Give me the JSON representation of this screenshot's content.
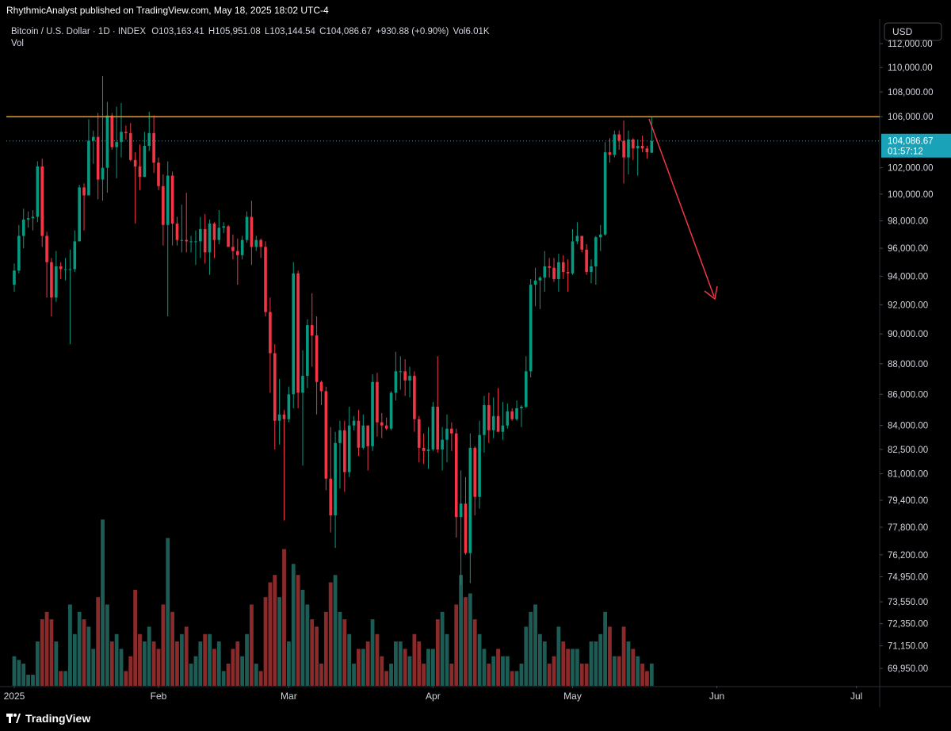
{
  "header": {
    "publisher": "RhythmicAnalyst published on TradingView.com, May 18, 2025 18:02 UTC-4"
  },
  "footer": {
    "brand": "TradingView"
  },
  "chart_data": {
    "type": "candlestick",
    "symbol": "Bitcoin / U.S. Dollar · 1D · INDEX",
    "legend": {
      "open": "O103,163.41",
      "high": "H105,951.08",
      "low": "L103,144.54",
      "close": "C104,086.67",
      "change": "+930.88 (+0.90%)",
      "volume_title": "Vol",
      "volume_value": "6.01K"
    },
    "currency": "USD",
    "log_scale": true,
    "up_color": "#089981",
    "down_color": "#f23645",
    "volume_up_color": "#1d5c55",
    "volume_down_color": "#8a2a2a",
    "ylim": [
      69040,
      114030
    ],
    "yticks": [
      {
        "value": 112000,
        "label": "112,000.00"
      },
      {
        "value": 110000,
        "label": "110,000.00"
      },
      {
        "value": 108000,
        "label": "108,000.00"
      },
      {
        "value": 106000,
        "label": "106,000.00"
      },
      {
        "value": 102000,
        "label": "102,000.00"
      },
      {
        "value": 100000,
        "label": "100,000.00"
      },
      {
        "value": 98000,
        "label": "98,000.00"
      },
      {
        "value": 96000,
        "label": "96,000.00"
      },
      {
        "value": 94000,
        "label": "94,000.00"
      },
      {
        "value": 92000,
        "label": "92,000.00"
      },
      {
        "value": 90000,
        "label": "90,000.00"
      },
      {
        "value": 88000,
        "label": "88,000.00"
      },
      {
        "value": 86000,
        "label": "86,000.00"
      },
      {
        "value": 84000,
        "label": "84,000.00"
      },
      {
        "value": 82500,
        "label": "82,500.00"
      },
      {
        "value": 81000,
        "label": "81,000.00"
      },
      {
        "value": 79400,
        "label": "79,400.00"
      },
      {
        "value": 77800,
        "label": "77,800.00"
      },
      {
        "value": 76200,
        "label": "76,200.00"
      },
      {
        "value": 74950,
        "label": "74,950.00"
      },
      {
        "value": 73550,
        "label": "73,550.00"
      },
      {
        "value": 72350,
        "label": "72,350.00"
      },
      {
        "value": 71150,
        "label": "71,150.00"
      },
      {
        "value": 69950,
        "label": "69,950.00"
      }
    ],
    "xlim": [
      -1.7,
      186
    ],
    "xticks": [
      {
        "value": 0,
        "label": "2025"
      },
      {
        "value": 31,
        "label": "Feb"
      },
      {
        "value": 59,
        "label": "Mar"
      },
      {
        "value": 90,
        "label": "Apr"
      },
      {
        "value": 120,
        "label": "May"
      },
      {
        "value": 151,
        "label": "Jun"
      },
      {
        "value": 181,
        "label": "Jul"
      }
    ],
    "price_label": {
      "value": 104086.67,
      "label": "104,086.67",
      "color": "#1aa3b8"
    },
    "countdown": "01:57:12",
    "hline": {
      "value": 106000,
      "color": "#ff9800"
    },
    "ohlc": [
      [
        93400,
        94900,
        92900,
        94400
      ],
      [
        94400,
        97700,
        94200,
        96900
      ],
      [
        96900,
        98900,
        96000,
        98100
      ],
      [
        98100,
        98700,
        97500,
        98200
      ],
      [
        98200,
        98800,
        97300,
        98300
      ],
      [
        98300,
        102500,
        97900,
        102100
      ],
      [
        102100,
        102700,
        96100,
        96900
      ],
      [
        96900,
        97200,
        92500,
        95000
      ],
      [
        95000,
        95300,
        91200,
        92500
      ],
      [
        92500,
        95800,
        92200,
        94700
      ],
      [
        94700,
        95000,
        93800,
        94500
      ],
      [
        94500,
        95300,
        93700,
        94500
      ],
      [
        94500,
        95900,
        89300,
        94500
      ],
      [
        94500,
        97300,
        94300,
        96500
      ],
      [
        96500,
        100700,
        96500,
        100500
      ],
      [
        100500,
        100800,
        97300,
        99900
      ],
      [
        99900,
        105800,
        99900,
        104100
      ],
      [
        104100,
        104900,
        102300,
        104400
      ],
      [
        104400,
        106300,
        99600,
        101100
      ],
      [
        101100,
        109300,
        99500,
        102000
      ],
      [
        102000,
        107200,
        100100,
        106100
      ],
      [
        106100,
        106300,
        103400,
        103600
      ],
      [
        103600,
        106800,
        101200,
        104000
      ],
      [
        104000,
        107100,
        102800,
        104800
      ],
      [
        104800,
        105300,
        104200,
        104700
      ],
      [
        104700,
        105500,
        102500,
        102600
      ],
      [
        102600,
        103200,
        97800,
        102100
      ],
      [
        102100,
        103800,
        100300,
        101300
      ],
      [
        101300,
        104800,
        101300,
        103700
      ],
      [
        103700,
        106400,
        103300,
        104700
      ],
      [
        104700,
        106100,
        101600,
        102400
      ],
      [
        102400,
        102800,
        100300,
        100600
      ],
      [
        100600,
        101500,
        96200,
        97700
      ],
      [
        97700,
        102500,
        91200,
        101400
      ],
      [
        101400,
        101700,
        96200,
        97800
      ],
      [
        97800,
        98300,
        96200,
        96600
      ],
      [
        96600,
        99200,
        95700,
        96600
      ],
      [
        96600,
        100100,
        95700,
        96500
      ],
      [
        96500,
        96900,
        95700,
        96500
      ],
      [
        96500,
        97300,
        94800,
        96500
      ],
      [
        96500,
        98300,
        95300,
        97400
      ],
      [
        97400,
        98500,
        94900,
        95700
      ],
      [
        95700,
        98100,
        94100,
        97800
      ],
      [
        97800,
        97900,
        95300,
        96600
      ],
      [
        96600,
        98800,
        96300,
        97500
      ],
      [
        97500,
        97900,
        97100,
        97600
      ],
      [
        97600,
        97700,
        96100,
        96100
      ],
      [
        96100,
        97000,
        95200,
        95800
      ],
      [
        95800,
        96700,
        93400,
        95500
      ],
      [
        95500,
        96900,
        95200,
        96600
      ],
      [
        96600,
        98700,
        96400,
        98300
      ],
      [
        98300,
        99500,
        94800,
        96100
      ],
      [
        96100,
        96900,
        95800,
        96600
      ],
      [
        96600,
        96700,
        95300,
        96100
      ],
      [
        96100,
        96500,
        91200,
        91500
      ],
      [
        91500,
        92500,
        86100,
        88700
      ],
      [
        88700,
        89300,
        82500,
        84300
      ],
      [
        84300,
        87000,
        82800,
        84700
      ],
      [
        84700,
        85000,
        78200,
        84400
      ],
      [
        84400,
        86500,
        84200,
        86000
      ],
      [
        86000,
        95000,
        85100,
        94200
      ],
      [
        94200,
        94400,
        85100,
        86100
      ],
      [
        86100,
        88900,
        81500,
        87200
      ],
      [
        87200,
        91000,
        86400,
        90600
      ],
      [
        90600,
        92800,
        87800,
        89900
      ],
      [
        89900,
        91200,
        84700,
        86800
      ],
      [
        86800,
        86900,
        85300,
        86200
      ],
      [
        86200,
        86500,
        80000,
        80700
      ],
      [
        80700,
        83900,
        77500,
        78500
      ],
      [
        78500,
        83600,
        76600,
        82900
      ],
      [
        82900,
        84300,
        80100,
        83700
      ],
      [
        83700,
        84300,
        79900,
        81100
      ],
      [
        81100,
        85200,
        80800,
        84000
      ],
      [
        84000,
        84600,
        83700,
        84300
      ],
      [
        84300,
        85000,
        82100,
        82600
      ],
      [
        82600,
        84700,
        82500,
        84000
      ],
      [
        84000,
        84000,
        81200,
        82700
      ],
      [
        82700,
        87300,
        82400,
        86800
      ],
      [
        86800,
        87400,
        83300,
        84200
      ],
      [
        84200,
        84800,
        83200,
        84000
      ],
      [
        84000,
        84500,
        83700,
        83800
      ],
      [
        83800,
        86200,
        83700,
        86100
      ],
      [
        86100,
        88800,
        85600,
        87500
      ],
      [
        87500,
        88500,
        86300,
        87500
      ],
      [
        87500,
        88300,
        85900,
        86900
      ],
      [
        86900,
        87800,
        85800,
        87200
      ],
      [
        87200,
        87500,
        83600,
        84400
      ],
      [
        84400,
        84600,
        81700,
        82600
      ],
      [
        82600,
        83500,
        81600,
        82400
      ],
      [
        82400,
        83900,
        81300,
        82500
      ],
      [
        82500,
        85500,
        82400,
        85200
      ],
      [
        85200,
        88500,
        82300,
        82500
      ],
      [
        82500,
        83900,
        81200,
        83100
      ],
      [
        83100,
        84700,
        81700,
        83800
      ],
      [
        83800,
        84200,
        82400,
        83500
      ],
      [
        83500,
        83800,
        77200,
        78400
      ],
      [
        78400,
        81200,
        74500,
        79200
      ],
      [
        79200,
        80800,
        76200,
        76300
      ],
      [
        76300,
        83500,
        74600,
        82600
      ],
      [
        82600,
        82700,
        78500,
        79600
      ],
      [
        79600,
        84300,
        78900,
        83400
      ],
      [
        83400,
        85900,
        82300,
        85300
      ],
      [
        85300,
        86100,
        82900,
        83700
      ],
      [
        83700,
        85800,
        83200,
        84600
      ],
      [
        84600,
        86400,
        83600,
        83600
      ],
      [
        83600,
        85500,
        83100,
        84000
      ],
      [
        84000,
        85400,
        83800,
        84900
      ],
      [
        84900,
        85100,
        84300,
        84400
      ],
      [
        84400,
        85600,
        84300,
        85100
      ],
      [
        85100,
        85300,
        83900,
        85200
      ],
      [
        85200,
        88500,
        85100,
        87500
      ],
      [
        87500,
        93800,
        87100,
        93400
      ],
      [
        93400,
        94600,
        91900,
        93700
      ],
      [
        93700,
        94000,
        91700,
        93900
      ],
      [
        93900,
        95800,
        92900,
        94700
      ],
      [
        94700,
        95300,
        93900,
        94600
      ],
      [
        94600,
        95300,
        93600,
        93800
      ],
      [
        93800,
        95600,
        92900,
        95000
      ],
      [
        95000,
        95500,
        93800,
        94300
      ],
      [
        94300,
        95200,
        92900,
        94200
      ],
      [
        94200,
        97400,
        94100,
        96500
      ],
      [
        96500,
        97900,
        96300,
        96900
      ],
      [
        96900,
        96900,
        95700,
        95900
      ],
      [
        95900,
        96300,
        94100,
        94300
      ],
      [
        94300,
        95200,
        93500,
        94700
      ],
      [
        94700,
        96900,
        93400,
        96800
      ],
      [
        96800,
        97700,
        95800,
        97000
      ],
      [
        97000,
        104000,
        96900,
        103200
      ],
      [
        103200,
        104300,
        102400,
        103000
      ],
      [
        103000,
        104900,
        102800,
        104600
      ],
      [
        104600,
        104900,
        103400,
        104100
      ],
      [
        104100,
        105700,
        100800,
        102800
      ],
      [
        102800,
        104900,
        101500,
        104200
      ],
      [
        104200,
        104300,
        102600,
        103500
      ],
      [
        103500,
        104200,
        101400,
        103700
      ],
      [
        103700,
        104500,
        103200,
        103500
      ],
      [
        103500,
        103700,
        102700,
        103200
      ],
      [
        103163.41,
        105951.08,
        103144.54,
        104086.67
      ]
    ],
    "volume": [
      8,
      7,
      6,
      3,
      3,
      12,
      18,
      20,
      18,
      12,
      4,
      4,
      22,
      14,
      20,
      18,
      16,
      10,
      24,
      45,
      22,
      12,
      14,
      10,
      4,
      8,
      26,
      14,
      12,
      16,
      12,
      10,
      22,
      40,
      20,
      12,
      14,
      16,
      6,
      8,
      12,
      14,
      14,
      10,
      12,
      4,
      6,
      10,
      12,
      8,
      14,
      22,
      6,
      4,
      24,
      28,
      30,
      24,
      37,
      12,
      33,
      30,
      26,
      22,
      18,
      16,
      6,
      20,
      28,
      30,
      20,
      18,
      14,
      6,
      10,
      10,
      12,
      18,
      14,
      8,
      4,
      6,
      12,
      12,
      10,
      8,
      14,
      12,
      6,
      10,
      10,
      18,
      20,
      14,
      6,
      22,
      30,
      24,
      25,
      18,
      14,
      10,
      6,
      8,
      10,
      8,
      8,
      4,
      4,
      6,
      16,
      20,
      22,
      14,
      12,
      6,
      8,
      16,
      12,
      10,
      10,
      10,
      6,
      6,
      12,
      12,
      14,
      20,
      16,
      8,
      8,
      16,
      12,
      10,
      8,
      6,
      4,
      6.01
    ]
  }
}
